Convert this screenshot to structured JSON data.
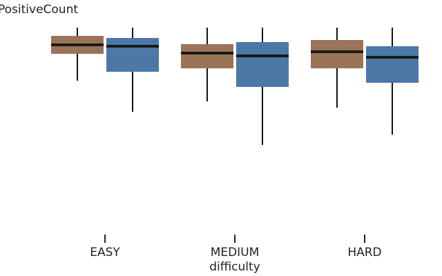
{
  "chart_data": {
    "type": "box",
    "title": "PositiveCount",
    "x_label": "difficulty",
    "categories": [
      "EASY",
      "MEDIUM",
      "HARD"
    ],
    "ylim": [
      0,
      300
    ],
    "series": [
      {
        "color": "#9b7358",
        "min": [
          223,
          193,
          184
        ],
        "q1": [
          262,
          241,
          241
        ],
        "median": [
          275,
          263,
          265
        ],
        "q3": [
          288,
          276,
          282
        ],
        "max": [
          300,
          300,
          300
        ]
      },
      {
        "color": "#4c78a8",
        "min": [
          178,
          130,
          145
        ],
        "q1": [
          236,
          214,
          220
        ],
        "median": [
          273,
          259,
          257
        ],
        "q3": [
          285,
          279,
          273
        ],
        "max": [
          300,
          300,
          300
        ]
      }
    ]
  }
}
